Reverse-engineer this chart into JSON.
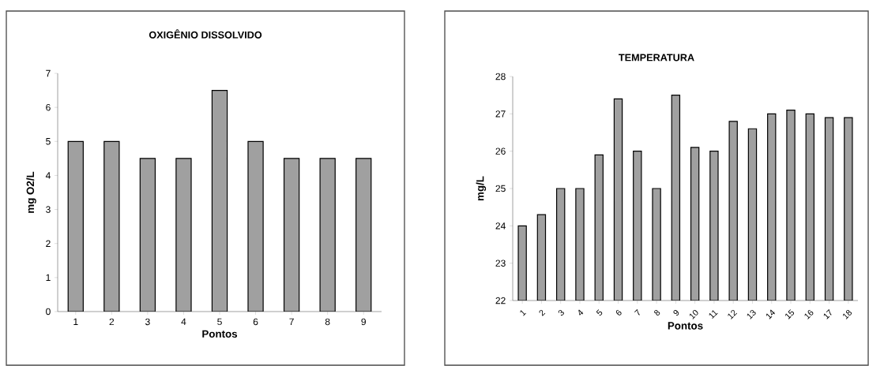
{
  "chart_data": [
    {
      "type": "bar",
      "title": "OXIGÊNIO DISSOLVIDO",
      "xlabel": "Pontos",
      "ylabel": "mg O2/L",
      "categories": [
        "1",
        "2",
        "3",
        "4",
        "5",
        "6",
        "7",
        "8",
        "9"
      ],
      "values": [
        5,
        5,
        4.5,
        4.5,
        6.5,
        5,
        4.5,
        4.5,
        4.5
      ],
      "color": "#a0a0a0",
      "ylim": [
        0,
        7
      ],
      "yticks": [
        0,
        1,
        2,
        3,
        4,
        5,
        6,
        7
      ]
    },
    {
      "type": "bar",
      "title": "TEMPERATURA",
      "xlabel": "Pontos",
      "ylabel": "mg/L",
      "categories": [
        "1",
        "2",
        "3",
        "4",
        "5",
        "6",
        "7",
        "8",
        "9",
        "10",
        "11",
        "12",
        "13",
        "14",
        "15",
        "16",
        "17",
        "18"
      ],
      "values": [
        24,
        24.3,
        25,
        25,
        25.9,
        27.4,
        26,
        25,
        27.5,
        26.1,
        26,
        26.8,
        26.6,
        27,
        27.1,
        27,
        26.9,
        26.9
      ],
      "color": "#a0a0a0",
      "ylim": [
        22,
        28
      ],
      "yticks": [
        22,
        23,
        24,
        25,
        26,
        27,
        28
      ]
    }
  ]
}
